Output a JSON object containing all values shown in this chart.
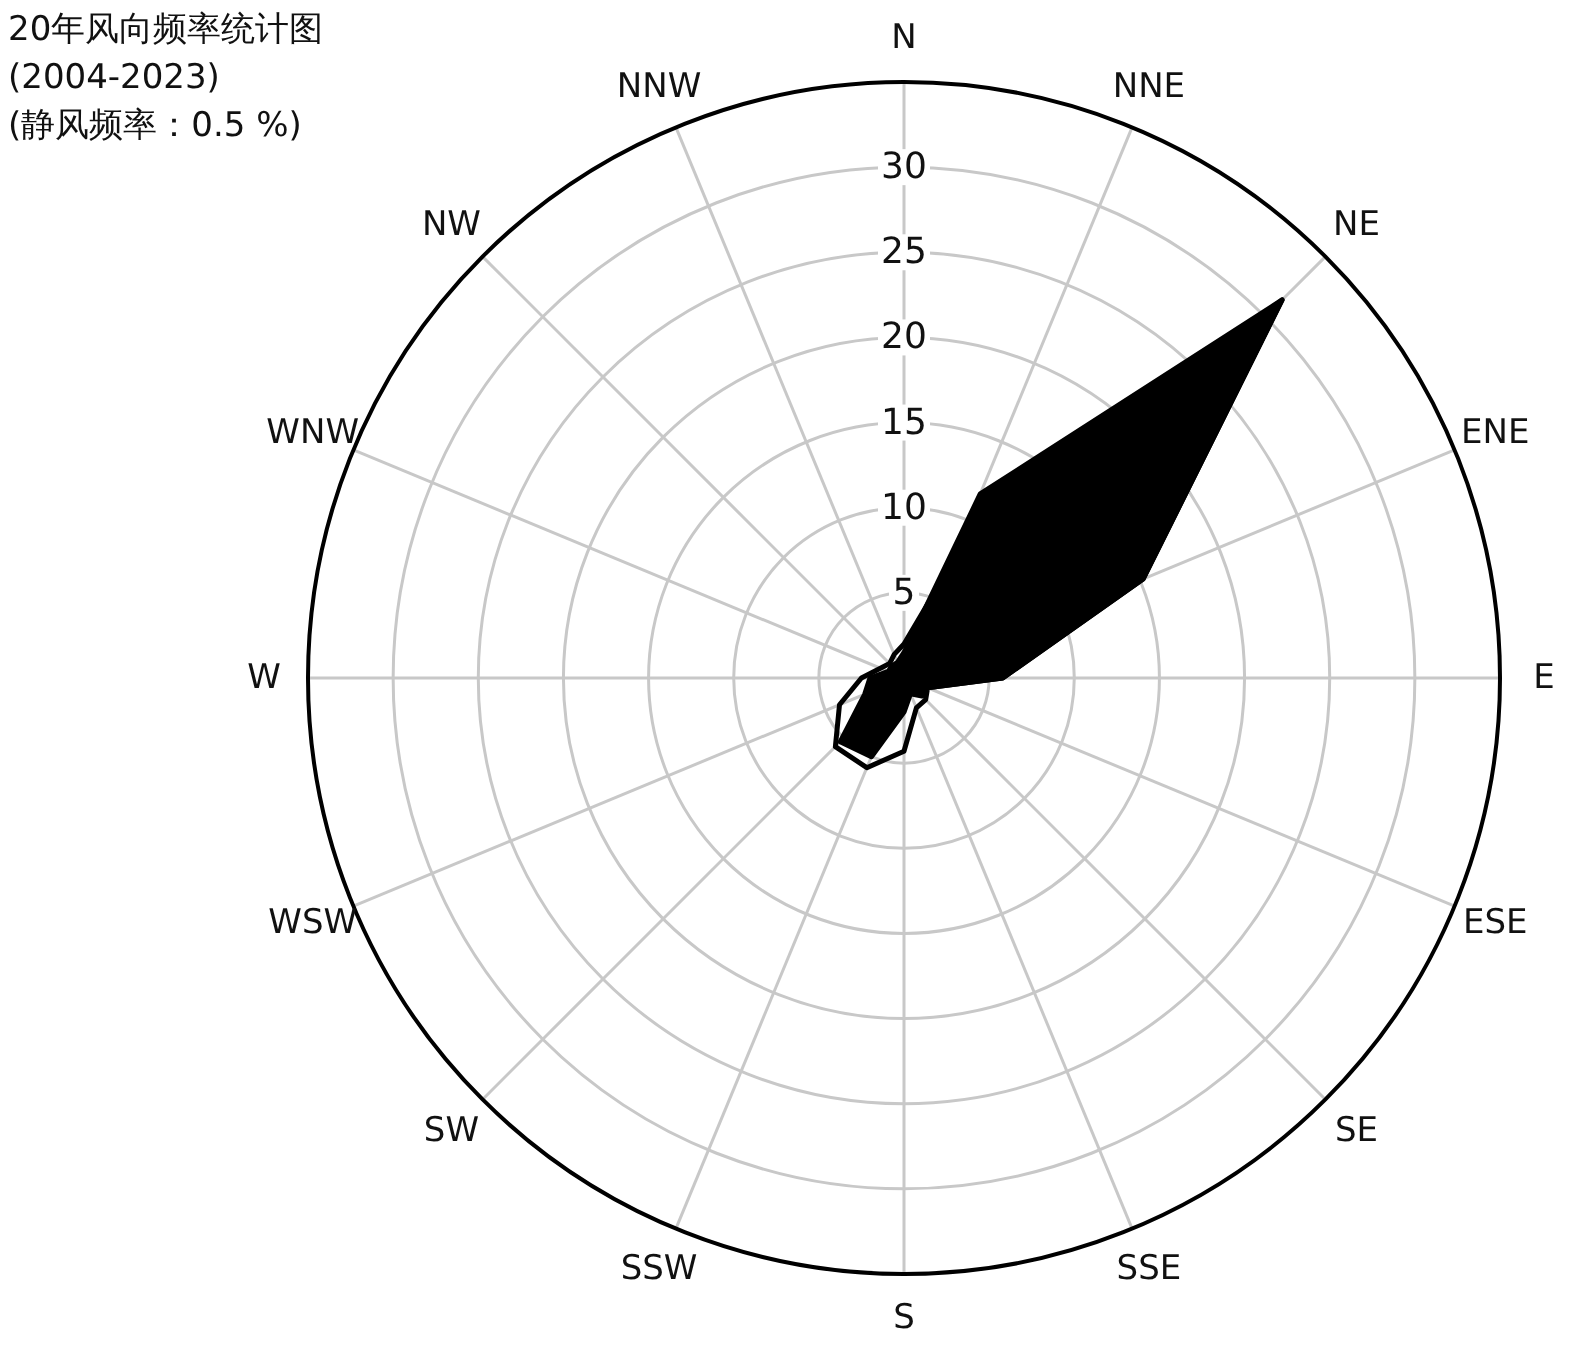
{
  "chart_data": {
    "type": "radar",
    "title": "20年风向频率统计图",
    "subtitle": "(2004-2023)",
    "annotations": [
      "(静风频率：0.5 %)"
    ],
    "categories": [
      "N",
      "NNE",
      "NE",
      "ENE",
      "E",
      "ESE",
      "SE",
      "SSE",
      "S",
      "SSW",
      "SW",
      "WSW",
      "W",
      "WNW",
      "NW",
      "NNW"
    ],
    "ylim": [
      0,
      35
    ],
    "yticks": [
      5,
      10,
      15,
      20,
      25,
      30
    ],
    "grid": true,
    "series": [
      {
        "type": "area",
        "color": "#000000",
        "values": [
          1.5,
          11.7,
          31.4,
          15.2,
          5.8,
          1.5,
          1.5,
          1,
          2,
          5,
          5.3,
          2.5,
          2,
          1,
          1,
          1
        ]
      },
      {
        "color": "#000000",
        "values": [
          2,
          7.2,
          31.4,
          15.2,
          5.8,
          1.5,
          1.8,
          1.9,
          4.3,
          5.7,
          5.7,
          4.1,
          2.5,
          1.5,
          1.2,
          1.5
        ]
      }
    ]
  }
}
